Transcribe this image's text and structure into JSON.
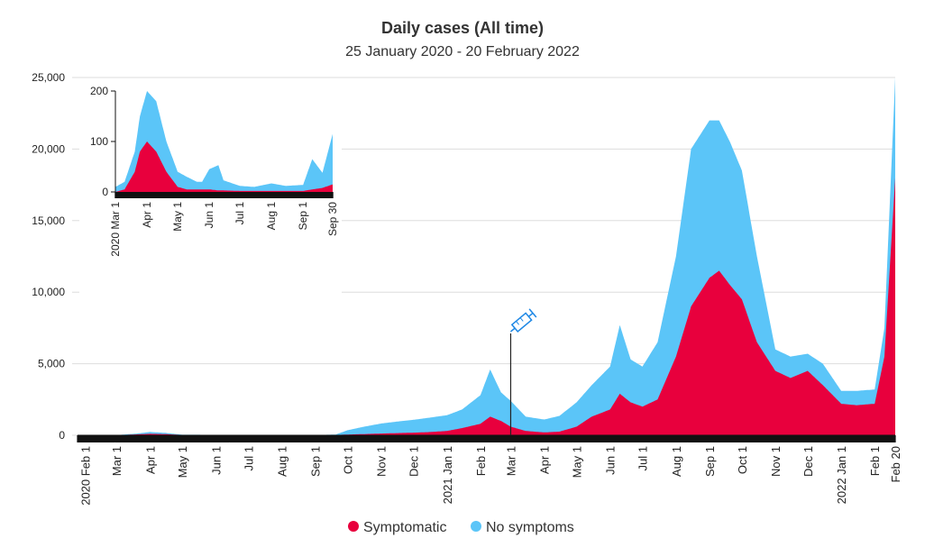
{
  "chart_data": {
    "type": "area",
    "stacked": true,
    "title": "Daily cases (All time)",
    "subtitle": "25 January 2020 - 20 February 2022",
    "ylim": [
      0,
      25000
    ],
    "yticks": [
      0,
      5000,
      10000,
      15000,
      20000,
      25000
    ],
    "ytick_labels": [
      "0",
      "5,000",
      "10,000",
      "15,000",
      "20,000",
      "25,000"
    ],
    "grid": true,
    "legend_position": "bottom",
    "colors": {
      "Symptomatic": "#e8003d",
      "No symptoms": "#5bc5f8"
    },
    "x_tick_labels": [
      {
        "date": "2020-02-01",
        "label": "2020 Feb 1"
      },
      {
        "date": "2020-03-01",
        "label": "Mar 1"
      },
      {
        "date": "2020-04-01",
        "label": "Apr 1"
      },
      {
        "date": "2020-05-01",
        "label": "May 1"
      },
      {
        "date": "2020-06-01",
        "label": "Jun 1"
      },
      {
        "date": "2020-07-01",
        "label": "Jul 1"
      },
      {
        "date": "2020-08-01",
        "label": "Aug 1"
      },
      {
        "date": "2020-09-01",
        "label": "Sep 1"
      },
      {
        "date": "2020-10-01",
        "label": "Oct 1"
      },
      {
        "date": "2020-11-01",
        "label": "Nov 1"
      },
      {
        "date": "2020-12-01",
        "label": "Dec 1"
      },
      {
        "date": "2021-01-01",
        "label": "2021 Jan 1"
      },
      {
        "date": "2021-02-01",
        "label": "Feb 1"
      },
      {
        "date": "2021-03-01",
        "label": "Mar 1"
      },
      {
        "date": "2021-04-01",
        "label": "Apr 1"
      },
      {
        "date": "2021-05-01",
        "label": "May 1"
      },
      {
        "date": "2021-06-01",
        "label": "Jun 1"
      },
      {
        "date": "2021-07-01",
        "label": "Jul 1"
      },
      {
        "date": "2021-08-01",
        "label": "Aug 1"
      },
      {
        "date": "2021-09-01",
        "label": "Sep 1"
      },
      {
        "date": "2021-10-01",
        "label": "Oct 1"
      },
      {
        "date": "2021-11-01",
        "label": "Nov 1"
      },
      {
        "date": "2021-12-01",
        "label": "Dec 1"
      },
      {
        "date": "2022-01-01",
        "label": "2022 Jan 1"
      },
      {
        "date": "2022-02-01",
        "label": "Feb 1"
      },
      {
        "date": "2022-02-20",
        "label": "Feb 20"
      }
    ],
    "vaccine_marker_date": "2021-03-01",
    "x": [
      "2020-01-25",
      "2020-03-01",
      "2020-03-20",
      "2020-04-01",
      "2020-04-15",
      "2020-05-01",
      "2020-06-01",
      "2020-09-01",
      "2020-09-20",
      "2020-10-01",
      "2020-10-15",
      "2020-11-01",
      "2020-11-15",
      "2020-12-01",
      "2020-12-15",
      "2021-01-01",
      "2021-01-15",
      "2021-02-01",
      "2021-02-10",
      "2021-02-20",
      "2021-03-01",
      "2021-03-15",
      "2021-04-01",
      "2021-04-15",
      "2021-05-01",
      "2021-05-15",
      "2021-06-01",
      "2021-06-10",
      "2021-06-20",
      "2021-07-01",
      "2021-07-15",
      "2021-08-01",
      "2021-08-15",
      "2021-09-01",
      "2021-09-10",
      "2021-09-20",
      "2021-10-01",
      "2021-10-15",
      "2021-11-01",
      "2021-11-15",
      "2021-12-01",
      "2021-12-15",
      "2022-01-01",
      "2022-01-15",
      "2022-02-01",
      "2022-02-10",
      "2022-02-20"
    ],
    "series": [
      {
        "name": "Symptomatic",
        "values": [
          0,
          5,
          60,
          100,
          80,
          20,
          10,
          5,
          20,
          50,
          80,
          120,
          150,
          180,
          220,
          300,
          500,
          800,
          1300,
          1000,
          600,
          300,
          200,
          250,
          600,
          1300,
          1800,
          2900,
          2300,
          2000,
          2500,
          5500,
          9000,
          11000,
          11500,
          10500,
          9500,
          6500,
          4500,
          4000,
          4500,
          3500,
          2200,
          2100,
          2200,
          5500,
          18000
        ]
      },
      {
        "name": "No symptoms",
        "values": [
          0,
          5,
          60,
          130,
          90,
          20,
          20,
          10,
          30,
          300,
          500,
          700,
          800,
          900,
          1000,
          1100,
          1300,
          2000,
          3300,
          2000,
          1800,
          1000,
          900,
          1100,
          1700,
          2200,
          3000,
          4800,
          3000,
          2800,
          4000,
          7000,
          11000,
          11000,
          10500,
          10000,
          9000,
          6000,
          1500,
          1500,
          1200,
          1500,
          900,
          1000,
          1000,
          2000,
          7000
        ]
      }
    ]
  },
  "legend": {
    "items": [
      {
        "label": "Symptomatic",
        "color": "#e8003d"
      },
      {
        "label": "No symptoms",
        "color": "#5bc5f8"
      }
    ]
  },
  "inset": {
    "ylim": [
      0,
      200
    ],
    "yticks": [
      0,
      100,
      200
    ],
    "ytick_labels": [
      "0",
      "100",
      "200"
    ],
    "x_tick_labels": [
      {
        "date": "2020-03-01",
        "label": "2020 Mar 1"
      },
      {
        "date": "2020-04-01",
        "label": "Apr 1"
      },
      {
        "date": "2020-05-01",
        "label": "May 1"
      },
      {
        "date": "2020-06-01",
        "label": "Jun 1"
      },
      {
        "date": "2020-07-01",
        "label": "Jul 1"
      },
      {
        "date": "2020-08-01",
        "label": "Aug 1"
      },
      {
        "date": "2020-09-01",
        "label": "Sep 1"
      },
      {
        "date": "2020-09-30",
        "label": "Sep 30"
      }
    ],
    "x": [
      "2020-03-01",
      "2020-03-10",
      "2020-03-20",
      "2020-03-25",
      "2020-04-01",
      "2020-04-10",
      "2020-04-15",
      "2020-04-20",
      "2020-05-01",
      "2020-05-10",
      "2020-05-20",
      "2020-05-25",
      "2020-06-01",
      "2020-06-10",
      "2020-06-15",
      "2020-07-01",
      "2020-07-15",
      "2020-08-01",
      "2020-08-15",
      "2020-09-01",
      "2020-09-10",
      "2020-09-20",
      "2020-09-30"
    ],
    "series": [
      {
        "name": "Symptomatic",
        "values": [
          0,
          5,
          40,
          80,
          100,
          80,
          60,
          40,
          10,
          5,
          5,
          5,
          5,
          3,
          3,
          2,
          2,
          2,
          2,
          2,
          5,
          8,
          15
        ]
      },
      {
        "name": "No symptoms",
        "values": [
          10,
          15,
          40,
          70,
          100,
          100,
          80,
          60,
          30,
          25,
          15,
          15,
          40,
          50,
          20,
          10,
          8,
          15,
          10,
          12,
          60,
          30,
          100
        ]
      }
    ]
  }
}
